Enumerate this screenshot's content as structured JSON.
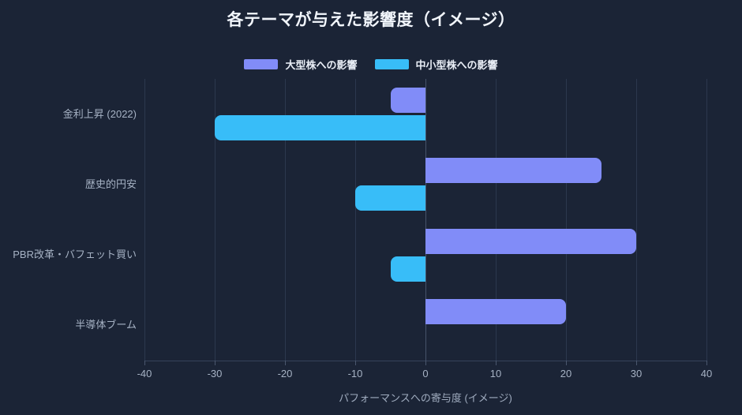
{
  "title": "各テーマが与えた影響度（イメージ）",
  "legend": [
    {
      "label": "大型株への影響",
      "color": "#818cf8"
    },
    {
      "label": "中小型株への影響",
      "color": "#38bdf8"
    }
  ],
  "chart_data": {
    "type": "bar",
    "orientation": "horizontal",
    "title": "各テーマが与えた影響度（イメージ）",
    "categories": [
      "金利上昇 (2022)",
      "歴史的円安",
      "PBR改革・バフェット買い",
      "半導体ブーム"
    ],
    "series": [
      {
        "name": "大型株への影響",
        "color": "#818cf8",
        "values": [
          -5,
          25,
          30,
          20
        ]
      },
      {
        "name": "中小型株への影響",
        "color": "#38bdf8",
        "values": [
          -30,
          -10,
          -5,
          0
        ]
      }
    ],
    "xlabel": "パフォーマンスへの寄与度 (イメージ)",
    "ylabel": "",
    "xlim": [
      -40,
      40
    ],
    "xticks": [
      -40,
      -30,
      -20,
      -10,
      0,
      10,
      20,
      30,
      40
    ],
    "grid": true,
    "legend_position": "top"
  },
  "colors": {
    "background": "#1b2436",
    "bar_large_cap": "#818cf8",
    "bar_small_mid_cap": "#38bdf8",
    "gridline": "#2c384e",
    "zero_line": "#46536a",
    "tick_text": "#a6b2c4",
    "title_text": "#f2f6fc",
    "legend_text": "#e9eef6"
  }
}
